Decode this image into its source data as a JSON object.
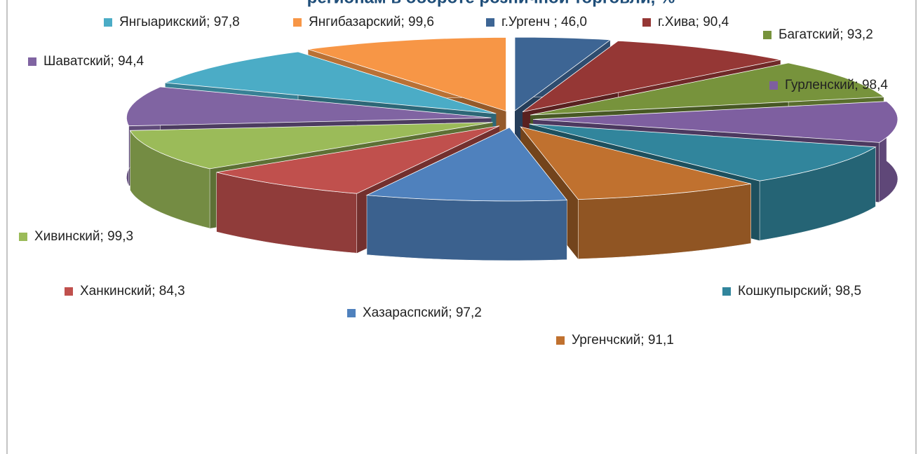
{
  "chart_data": {
    "type": "pie3d",
    "title": "регионам в обороте розничной торговли, %",
    "label_separator": "; ",
    "categories": [
      "г.Ургенч ",
      "г.Хива",
      "Багатский",
      "Гурленский",
      "Кошкупырский",
      "Ургенчский",
      "Хазараспский",
      "Ханкинский",
      "Хивинский",
      "Шаватский",
      "Янгыарикский",
      "Янгибазарский"
    ],
    "values": [
      46.0,
      90.4,
      93.2,
      98.4,
      98.5,
      91.1,
      97.2,
      84.3,
      99.3,
      94.4,
      97.8,
      99.6
    ],
    "value_labels": [
      "46,0",
      "90,4",
      "93,2",
      "98,4",
      "98,5",
      "91,1",
      "97,2",
      "84,3",
      "99,3",
      "94,4",
      "97,8",
      "99,6"
    ],
    "colors": [
      "#3d6594",
      "#953735",
      "#77933c",
      "#7e5fa0",
      "#31859c",
      "#c0712f",
      "#4f81bd",
      "#c0504d",
      "#9bbb59",
      "#8064a2",
      "#4bacc6",
      "#f79646"
    ]
  }
}
